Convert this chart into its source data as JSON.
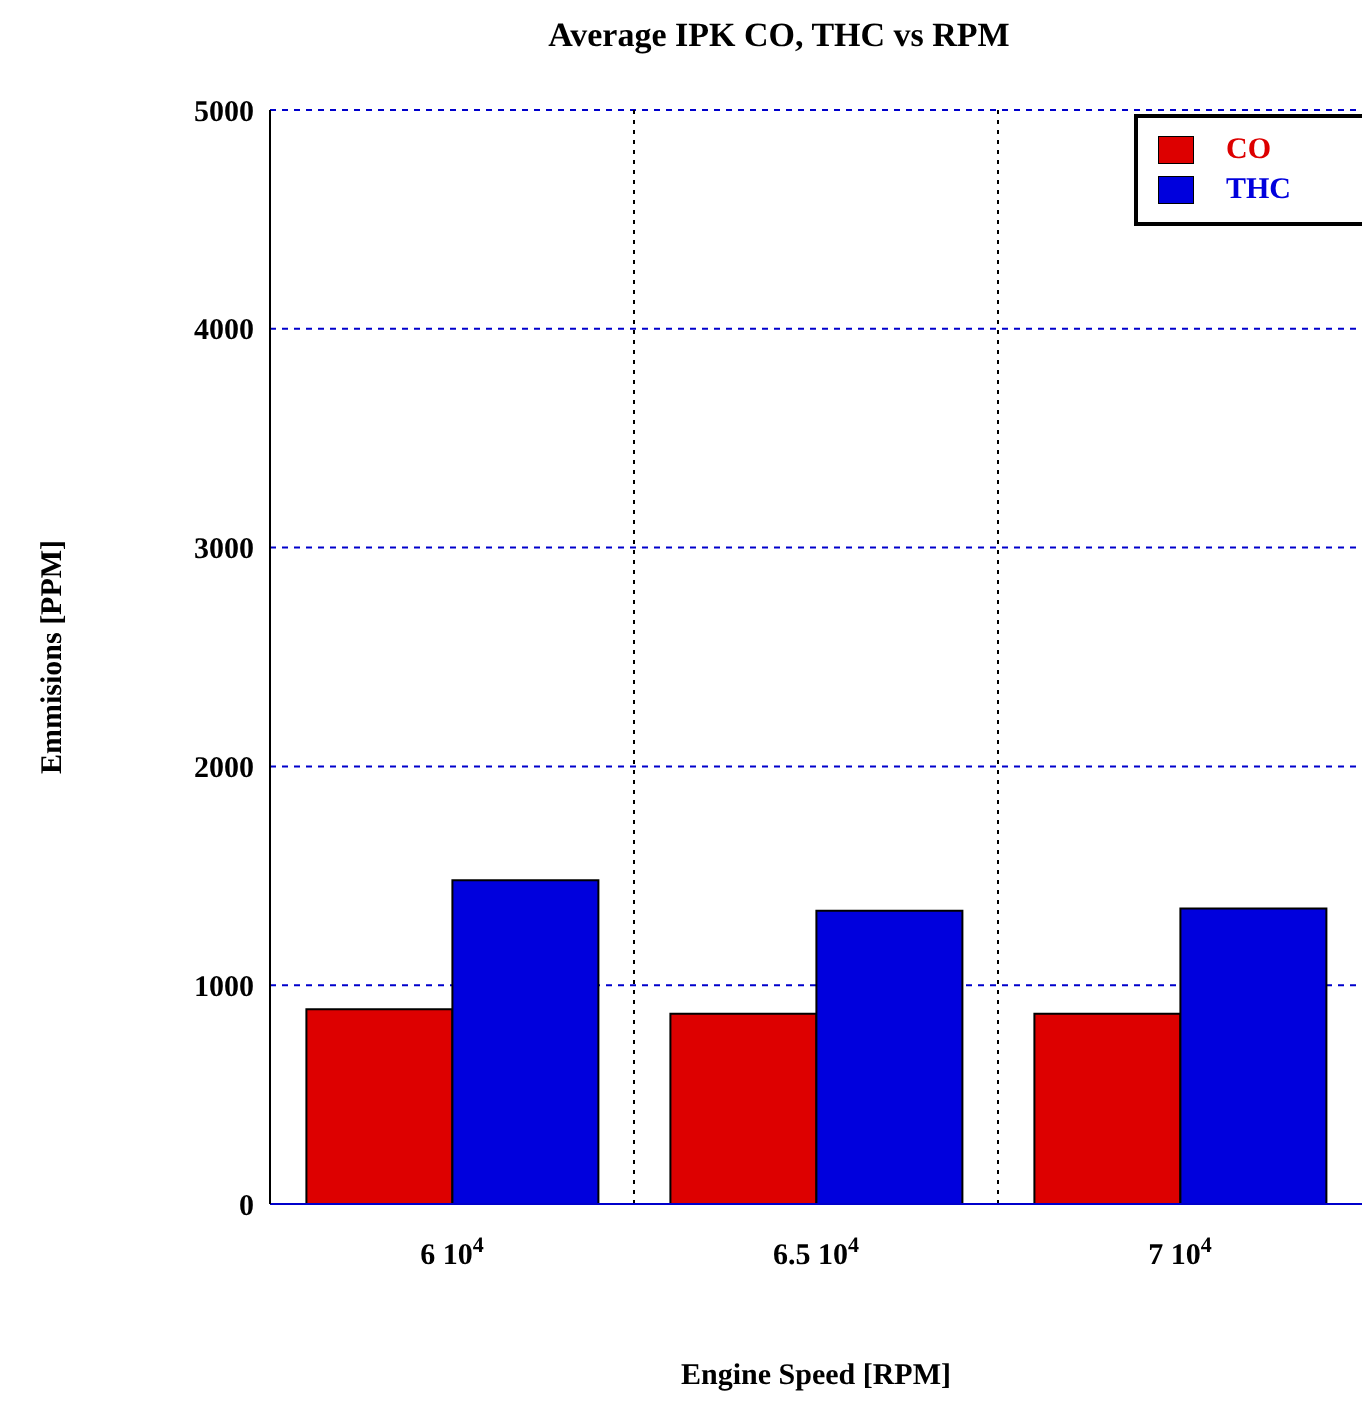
{
  "chart_data": {
    "type": "bar",
    "title": "Average IPK CO, THC vs RPM",
    "xlabel": "Engine Speed [RPM]",
    "ylabel": "Emmisions [PPM]",
    "categories": [
      "6 10$^{4}$",
      "6.5 10$^{4}$",
      "7 10$^{4}$"
    ],
    "series": [
      {
        "name": "CO",
        "color": "#dd0000",
        "values": [
          890,
          870,
          870
        ]
      },
      {
        "name": "THC",
        "color": "#0000dd",
        "values": [
          1480,
          1340,
          1350
        ]
      }
    ],
    "ylim": [
      0,
      5000
    ],
    "yticks": [
      0,
      1000,
      2000,
      3000,
      4000,
      5000
    ],
    "grid": true,
    "legend": "top right"
  }
}
